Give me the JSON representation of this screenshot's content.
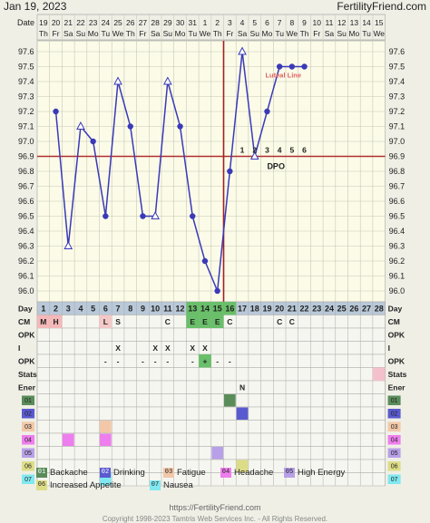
{
  "header": {
    "date": "Jan 19, 2023",
    "brand": "FertilityFriend.com"
  },
  "chart_data": {
    "type": "line",
    "ylim": [
      96.0,
      97.6
    ],
    "ylabels": [
      "97.6",
      "97.5",
      "97.4",
      "97.3",
      "97.2",
      "97.1",
      "97.0",
      "96.9",
      "96.8",
      "96.7",
      "96.6",
      "96.5",
      "96.4",
      "96.3",
      "96.2",
      "96.1",
      "96.0"
    ],
    "date_label": "Date",
    "dates": [
      "19",
      "20",
      "21",
      "22",
      "23",
      "24",
      "25",
      "26",
      "27",
      "28",
      "29",
      "30",
      "31",
      "1",
      "2",
      "3",
      "4",
      "5",
      "6",
      "7",
      "8",
      "9",
      "10",
      "11",
      "12",
      "13",
      "14",
      "15"
    ],
    "weekdays": [
      "Th",
      "Fr",
      "Sa",
      "Su",
      "Mo",
      "Tu",
      "We",
      "Th",
      "Fr",
      "Sa",
      "Su",
      "Mo",
      "Tu",
      "We",
      "Th",
      "Fr",
      "Sa",
      "Su",
      "Mo",
      "Tu",
      "We",
      "Th",
      "Fr",
      "Sa",
      "Su",
      "Mo",
      "Tu",
      "We"
    ],
    "temps": [
      null,
      97.2,
      96.3,
      97.1,
      97.0,
      96.5,
      97.4,
      97.1,
      96.5,
      96.5,
      97.4,
      97.1,
      96.5,
      96.2,
      96.0,
      96.8,
      97.6,
      96.9,
      97.2,
      97.5,
      97.5,
      97.5,
      null,
      null,
      null,
      null,
      null,
      null
    ],
    "open_markers": [
      2,
      3,
      6,
      9,
      10,
      16,
      17
    ],
    "coverline": 96.9,
    "ovulation_day_index": 15,
    "luteal_line_label": "Luteal Line",
    "dpo_label": "DPO",
    "dpo_numbers": [
      "1",
      "2",
      "3",
      "4",
      "5",
      "6"
    ],
    "colors": {
      "temp_line": "#3a3ab8",
      "coverline": "#b03030",
      "ovulation": "#a02020",
      "luteal": "#e06060",
      "day_header": "#b9c9d9",
      "fertile_green": "#6abf6a"
    }
  },
  "rows": {
    "labels": [
      "Day",
      "CM",
      "OPK",
      "I",
      "OPK",
      "Stats",
      "Ener",
      "01",
      "02",
      "03",
      "04",
      "05",
      "06",
      "07"
    ],
    "day_label": "Day",
    "days": [
      "1",
      "2",
      "3",
      "4",
      "5",
      "6",
      "7",
      "8",
      "9",
      "10",
      "11",
      "12",
      "13",
      "14",
      "15",
      "16",
      "17",
      "18",
      "19",
      "20",
      "21",
      "22",
      "23",
      "24",
      "25",
      "26",
      "27",
      "28"
    ],
    "fertile_days": [
      13,
      14,
      15,
      16
    ],
    "cm_label": "CM",
    "cm": {
      "1": "M",
      "2": "H",
      "6": "L",
      "7": "S",
      "11": "C",
      "13": "E",
      "14": "E",
      "15": "E",
      "16": "C",
      "20": "C",
      "21": "C"
    },
    "opk_label": "OPK",
    "i_label": "I",
    "i": {
      "7": "X",
      "10": "X",
      "11": "X",
      "13": "X",
      "14": "X"
    },
    "opk": {
      "6": "-",
      "7": "-",
      "9": "-",
      "10": "-",
      "11": "-",
      "13": "-",
      "14": "+",
      "15": "-",
      "16": "-"
    },
    "stats_label": "Stats",
    "ener_label": "Ener",
    "ener": {
      "17": "N"
    },
    "symptom_codes": [
      "01",
      "02",
      "03",
      "04",
      "05",
      "06",
      "07"
    ]
  },
  "symptoms": [
    {
      "code": "01",
      "label": "Backache",
      "color": "#5a8c5a",
      "days": [
        16
      ]
    },
    {
      "code": "02",
      "label": "Drinking",
      "color": "#5a5ad0",
      "days": [
        17
      ]
    },
    {
      "code": "03",
      "label": "Fatigue",
      "color": "#f2c8a8",
      "days": [
        6
      ]
    },
    {
      "code": "04",
      "label": "Headache",
      "color": "#ee7eee",
      "days": [
        3,
        6
      ]
    },
    {
      "code": "05",
      "label": "High Energy",
      "color": "#b8a0e8",
      "days": [
        15
      ]
    },
    {
      "code": "06",
      "label": "Increased Appetite",
      "color": "#dddd88",
      "days": [
        17
      ]
    },
    {
      "code": "07",
      "label": "Nausea",
      "color": "#80e8f0",
      "days": [
        6
      ]
    }
  ],
  "footer": {
    "url": "https://FertilityFriend.com",
    "copyright": "Copyright 1998-2023 Tamtris Web Services Inc. - All Rights Reserved."
  }
}
